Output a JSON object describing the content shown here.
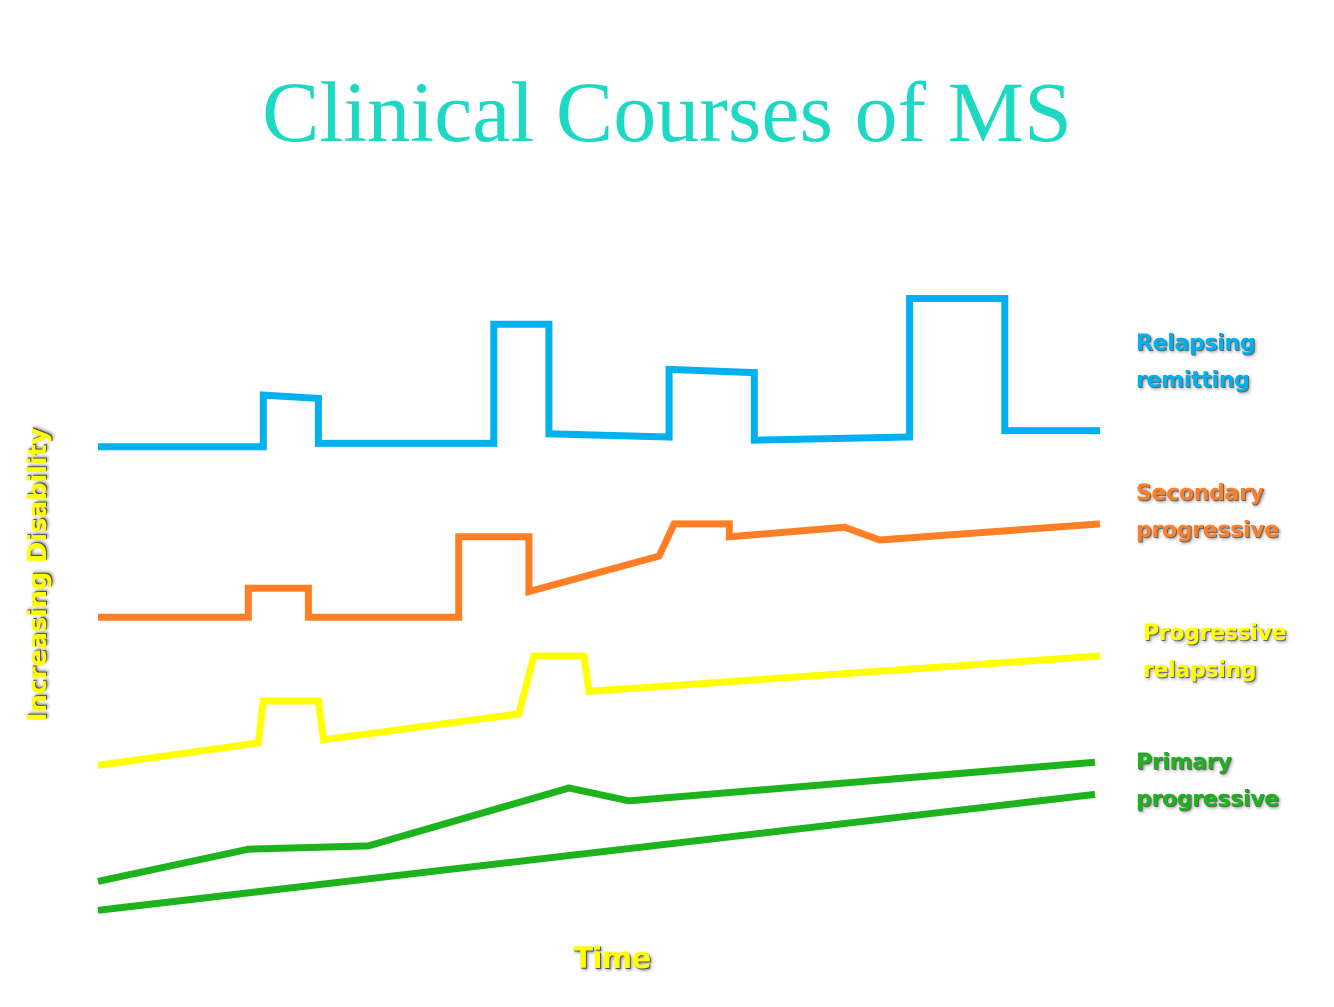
{
  "chart_data": {
    "type": "line",
    "title": "Clinical Courses of MS",
    "xlabel": "Time",
    "ylabel_parts": [
      "Increasing ",
      "Disability"
    ],
    "xlim": [
      0,
      100
    ],
    "ylim": [
      0,
      100
    ],
    "grid": false,
    "legend": "right",
    "series": [
      {
        "name_lines": [
          "Relapsing",
          "remitting"
        ],
        "color": "#00b0f0",
        "x": [
          0,
          16.5,
          16.5,
          22,
          22,
          39.5,
          39.5,
          45,
          45,
          57,
          57,
          65.5,
          65.5,
          81,
          81,
          90.5,
          90.5,
          100
        ],
        "y": [
          73.5,
          73.5,
          81.5,
          81,
          74,
          74,
          92.5,
          92.5,
          75.5,
          75,
          85.5,
          85,
          74.5,
          75,
          96.5,
          96.5,
          76,
          76
        ]
      },
      {
        "name_lines": [
          "Secondary",
          "progressive"
        ],
        "color": "#ff7f27",
        "x": [
          0,
          15,
          15,
          21,
          21,
          36,
          36,
          43,
          43,
          56,
          57.5,
          63,
          63,
          74.5,
          78,
          100
        ],
        "y": [
          47,
          47,
          51.5,
          51.5,
          47,
          47,
          59.5,
          59.5,
          51,
          56.5,
          61.5,
          61.5,
          59.5,
          61,
          59,
          61.5
        ]
      },
      {
        "name_lines": [
          "Progressive",
          "relapsing"
        ],
        "color": "#ffff00",
        "x": [
          0,
          16,
          16.5,
          22,
          22.5,
          42,
          43.5,
          48.5,
          49,
          100
        ],
        "y": [
          24,
          27.5,
          34,
          34,
          28,
          32,
          41,
          41,
          35.5,
          41
        ]
      },
      {
        "name_lines": [
          "Primary",
          "progressive"
        ],
        "color": "#1db31d",
        "x": [
          0,
          15,
          27,
          47,
          53,
          99.5
        ],
        "y": [
          6,
          11,
          11.5,
          20.5,
          18.5,
          24.5
        ]
      },
      {
        "name_lines": [
          "",
          ""
        ],
        "color": "#1db31d",
        "x": [
          0,
          99.5
        ],
        "y": [
          1.5,
          19.5
        ]
      }
    ]
  }
}
